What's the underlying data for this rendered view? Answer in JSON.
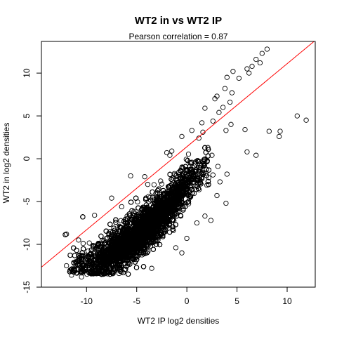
{
  "chart_data": {
    "type": "scatter",
    "title": "WT2 in vs WT2 IP",
    "subtitle": "Pearson correlation =  0.87",
    "xlabel": "WT2 IP log2 densities",
    "ylabel": "WT2 in log2 densities",
    "xlim": [
      -14.5,
      12.8
    ],
    "ylim": [
      -15,
      13.7
    ],
    "xticks": [
      -10,
      -5,
      0,
      5,
      10
    ],
    "yticks": [
      -15,
      -10,
      -5,
      0,
      5,
      10
    ],
    "xtick_labels": [
      "-10",
      "-5",
      "0",
      "5",
      "10"
    ],
    "ytick_labels": [
      "-15",
      "-10",
      "-5",
      "0",
      "5",
      "10"
    ],
    "point_style": "open-circle",
    "point_color": "#000000",
    "fit_line": {
      "intercept": 1.4,
      "slope": 0.97,
      "color": "#ff0000"
    },
    "grid": false,
    "legend": "none",
    "cloud": {
      "n": 9000,
      "x_center": -4.5,
      "x_sd": 2.8,
      "x_range": [
        -12.2,
        2.2
      ],
      "y_at_x": {
        "x": [
          -12,
          -10,
          -8,
          -6,
          -4,
          -2,
          0,
          2
        ],
        "y": [
          -12.5,
          -12.2,
          -11.5,
          -10.0,
          -8.0,
          -5.8,
          -3.0,
          -1.0
        ]
      },
      "y_sd": 1.1
    },
    "points": [
      {
        "x": 8.0,
        "y": 12.8
      },
      {
        "x": 7.5,
        "y": 12.3
      },
      {
        "x": 6.9,
        "y": 11.6
      },
      {
        "x": 7.3,
        "y": 11.2
      },
      {
        "x": 6.5,
        "y": 10.8
      },
      {
        "x": 6.0,
        "y": 10.5
      },
      {
        "x": 4.6,
        "y": 10.2
      },
      {
        "x": 6.2,
        "y": 10.0
      },
      {
        "x": 5.2,
        "y": 9.4
      },
      {
        "x": 4.0,
        "y": 9.5
      },
      {
        "x": 3.8,
        "y": 8.2
      },
      {
        "x": 4.5,
        "y": 7.7
      },
      {
        "x": 3.0,
        "y": 7.3
      },
      {
        "x": 4.3,
        "y": 6.6
      },
      {
        "x": 3.6,
        "y": 6.0
      },
      {
        "x": 2.8,
        "y": 7.0
      },
      {
        "x": 3.2,
        "y": 5.4
      },
      {
        "x": 1.8,
        "y": 5.9
      },
      {
        "x": 2.6,
        "y": 4.4
      },
      {
        "x": 4.4,
        "y": 4.0
      },
      {
        "x": 3.9,
        "y": 3.3
      },
      {
        "x": 5.8,
        "y": 3.4
      },
      {
        "x": 8.2,
        "y": 3.2
      },
      {
        "x": 9.3,
        "y": 3.2
      },
      {
        "x": 9.2,
        "y": 2.6
      },
      {
        "x": 11.0,
        "y": 5.0
      },
      {
        "x": 11.9,
        "y": 4.5
      },
      {
        "x": 6.0,
        "y": 0.8
      },
      {
        "x": 6.9,
        "y": 0.4
      },
      {
        "x": 2.1,
        "y": 1.3
      },
      {
        "x": 2.5,
        "y": 0.4
      },
      {
        "x": 3.1,
        "y": -0.9
      },
      {
        "x": 4.0,
        "y": -1.8
      },
      {
        "x": 1.2,
        "y": 2.4
      },
      {
        "x": 0.5,
        "y": 3.3
      },
      {
        "x": -0.5,
        "y": 2.6
      },
      {
        "x": 1.5,
        "y": 4.2
      },
      {
        "x": -1.5,
        "y": 0.9
      },
      {
        "x": -2.0,
        "y": 0.7
      },
      {
        "x": -1.7,
        "y": 0.4
      },
      {
        "x": -5.6,
        "y": -2.0
      },
      {
        "x": -4.2,
        "y": -2.1
      },
      {
        "x": -3.9,
        "y": -3.0
      },
      {
        "x": -7.5,
        "y": -4.6
      },
      {
        "x": -9.2,
        "y": -6.6
      },
      {
        "x": -6.5,
        "y": -5.6
      },
      {
        "x": -12.0,
        "y": -8.8
      },
      {
        "x": -10.8,
        "y": -9.5
      },
      {
        "x": -12.0,
        "y": -12.5
      },
      {
        "x": -11.5,
        "y": -13.6
      },
      {
        "x": -10.5,
        "y": -13.8
      },
      {
        "x": -1.1,
        "y": -10.4
      },
      {
        "x": 0.0,
        "y": -9.3
      },
      {
        "x": 1.8,
        "y": -6.7
      },
      {
        "x": 2.4,
        "y": -7.2
      },
      {
        "x": 3.0,
        "y": -4.3
      },
      {
        "x": 2.0,
        "y": -3.1
      },
      {
        "x": 3.9,
        "y": -5.2
      },
      {
        "x": 1.0,
        "y": -7.5
      },
      {
        "x": -0.5,
        "y": -11.0
      },
      {
        "x": -3.5,
        "y": -12.8
      },
      {
        "x": -6.5,
        "y": -13.2
      },
      {
        "x": -8.0,
        "y": -13.3
      },
      {
        "x": 2.6,
        "y": -1.9
      },
      {
        "x": 3.3,
        "y": -2.7
      },
      {
        "x": 1.6,
        "y": 3.1
      }
    ]
  }
}
